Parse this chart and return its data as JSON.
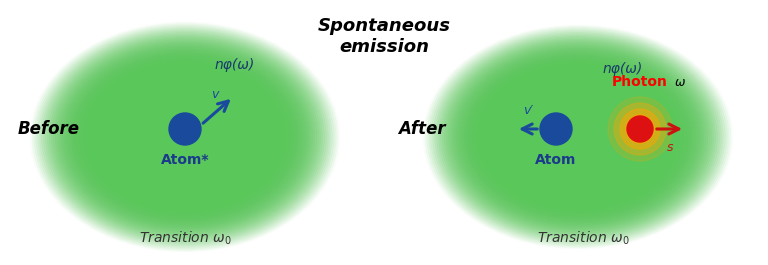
{
  "title": "Spontaneous\nemission",
  "bg_color": "#ffffff",
  "green_color": "#7dc87d",
  "dark_blue": "#1a3a8c",
  "blue_atom": "#1a4a9c",
  "red_photon": "#dd1111",
  "orange_glow": "#ff8c00",
  "arrow_blue": "#1a4a9c",
  "arrow_red": "#cc1111",
  "before_label": "Before",
  "after_label": "After",
  "transition_label": "Transition ω₀",
  "atom_star_label": "Atom*",
  "atom_label": "Atom",
  "photon_label": "Photon",
  "n_phi_omega": "nφ(ω)",
  "vel_v": "v",
  "vel_v_prime": "v′",
  "vel_s": "s",
  "omega_label": "ω"
}
